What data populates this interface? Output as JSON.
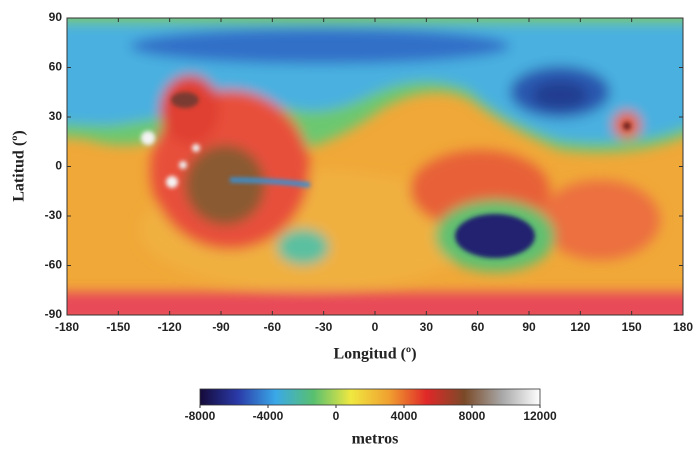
{
  "chart_data": {
    "type": "map",
    "xlabel": "Longitud (º)",
    "ylabel": "Latitud (º)",
    "xlim": [
      -180,
      180
    ],
    "ylim": [
      -90,
      90
    ],
    "xticks": [
      -180,
      -150,
      -120,
      -90,
      -60,
      -30,
      0,
      30,
      60,
      90,
      120,
      150,
      180
    ],
    "yticks": [
      -90,
      -60,
      -30,
      0,
      30,
      60,
      90
    ],
    "colorbar": {
      "label": "metros",
      "lim": [
        -8000,
        12000
      ],
      "ticks": [
        -8000,
        -4000,
        0,
        4000,
        8000,
        12000
      ],
      "colors": [
        "#150a3a",
        "#2a3aa8",
        "#3aa8e8",
        "#58c070",
        "#f0e840",
        "#f0a030",
        "#e02828",
        "#7a4a28",
        "#a8a8a8",
        "#ffffff"
      ]
    }
  }
}
